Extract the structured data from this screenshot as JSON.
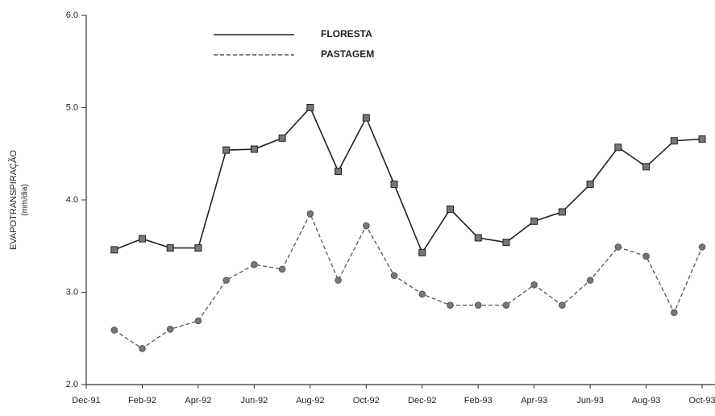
{
  "chart_data": {
    "type": "line",
    "y_label": "EVAPOTRANSPIRAÇÃO",
    "y_label_unit": "(mm/dia)",
    "categories": [
      "Dec-91",
      null,
      "Feb-92",
      null,
      "Apr-92",
      null,
      "Jun-92",
      null,
      "Aug-92",
      null,
      "Oct-92",
      null,
      "Dec-92",
      null,
      "Feb-93",
      null,
      "Apr-93",
      null,
      "Jun-93",
      null,
      "Aug-93",
      null,
      "Oct-93"
    ],
    "series": [
      {
        "name": "FLORESTA",
        "color": "#222222",
        "dash": false,
        "marker": "square",
        "values": [
          null,
          3.46,
          3.58,
          3.48,
          3.48,
          4.54,
          4.55,
          4.67,
          5.0,
          4.31,
          4.89,
          4.17,
          3.43,
          3.9,
          3.59,
          3.54,
          3.77,
          3.87,
          4.17,
          4.57,
          4.36,
          4.64,
          4.66
        ]
      },
      {
        "name": "PASTAGEM",
        "color": "#555555",
        "dash": true,
        "marker": "circle",
        "values": [
          null,
          2.59,
          2.39,
          2.6,
          2.69,
          3.13,
          3.3,
          3.25,
          3.85,
          3.13,
          3.72,
          3.18,
          2.98,
          2.86,
          2.86,
          2.86,
          3.08,
          2.86,
          3.13,
          3.49,
          3.39,
          2.78,
          3.49
        ]
      }
    ],
    "ylim": [
      2,
      6
    ],
    "yticks": [
      {
        "value": 2,
        "label": "2.0"
      },
      {
        "value": 3,
        "label": "3.0"
      },
      {
        "value": 4,
        "label": "4.0"
      },
      {
        "value": 5,
        "label": "5.0"
      },
      {
        "value": 6,
        "label": "6.0"
      }
    ],
    "grid": false
  }
}
